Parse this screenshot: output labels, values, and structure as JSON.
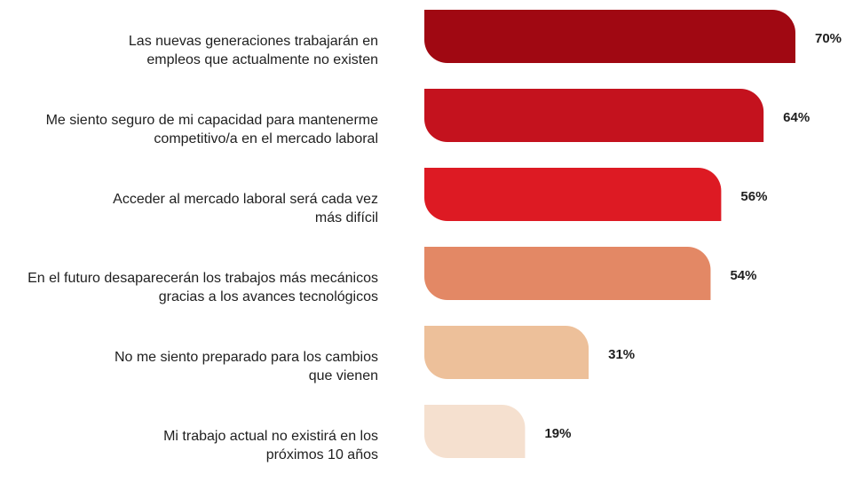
{
  "chart_data": {
    "type": "bar",
    "orientation": "horizontal",
    "categories": [
      [
        "Las nuevas generaciones trabajarán en",
        "empleos que actualmente no existen"
      ],
      [
        "Me siento seguro de mi capacidad para mantenerme",
        "competitivo/a en el mercado laboral"
      ],
      [
        "Acceder al mercado laboral será cada vez",
        "más difícil"
      ],
      [
        "En el futuro desaparecerán los trabajos más mecánicos",
        "gracias a los avances tecnológicos"
      ],
      [
        "No me siento preparado para los cambios",
        "que vienen"
      ],
      [
        "Mi trabajo actual no existirá en los",
        "próximos 10 años"
      ]
    ],
    "values": [
      70,
      64,
      56,
      54,
      31,
      19
    ],
    "value_labels": [
      "70%",
      "64%",
      "56%",
      "54%",
      "31%",
      "19%"
    ],
    "colors": [
      "#a00812",
      "#c4121e",
      "#dd1a23",
      "#e38865",
      "#edc09a",
      "#f5e0cf"
    ],
    "xlim": [
      0,
      100
    ],
    "grid": false,
    "legend": "none"
  }
}
